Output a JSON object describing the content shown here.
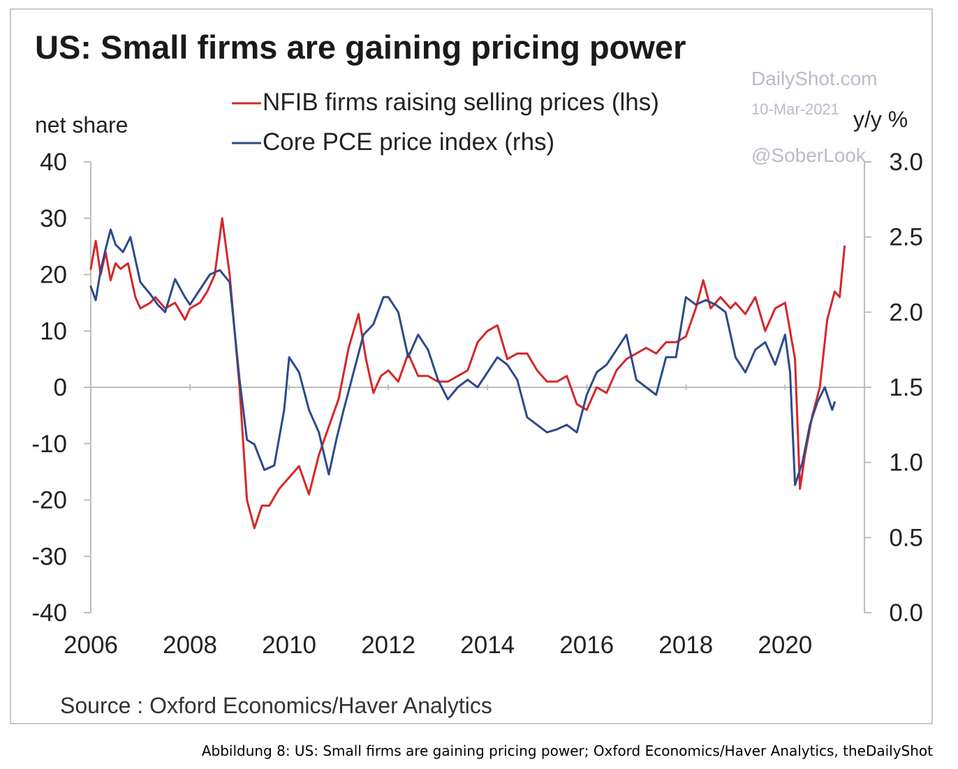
{
  "caption": "Abbildung 8: US: Small firms are gaining pricing power; Oxford Economics/Haver Analytics, theDailyShot",
  "watermark": {
    "site": "DailyShot.com",
    "date": "10-Mar-2021",
    "handle": "@SoberLook"
  },
  "colors": {
    "nfib": "#d62728",
    "pce": "#2e4a8c"
  },
  "chart_data": {
    "type": "line",
    "title": "US: Small firms are gaining pricing power",
    "source": "Source : Oxford Economics/Haver Analytics",
    "ylabel_left": "net share",
    "ylabel_right": "y/y %",
    "ylim_left": [
      -40,
      40
    ],
    "ylim_right": [
      0.0,
      3.0
    ],
    "yticks_left": [
      "40",
      "30",
      "20",
      "10",
      "0",
      "-10",
      "-20",
      "-30",
      "-40"
    ],
    "yticks_right": [
      "3.0",
      "2.5",
      "2.0",
      "1.5",
      "1.0",
      "0.5",
      "0.0"
    ],
    "xlim": [
      2006,
      2021.6
    ],
    "xticks": [
      "2006",
      "2008",
      "2010",
      "2012",
      "2014",
      "2016",
      "2018",
      "2020"
    ],
    "zero_line": true,
    "legend_position": "top-center",
    "series": [
      {
        "name": "NFIB firms raising selling prices (lhs)",
        "axis": "left",
        "x": [
          2006.0,
          2006.1,
          2006.2,
          2006.3,
          2006.4,
          2006.5,
          2006.6,
          2006.75,
          2006.9,
          2007.0,
          2007.2,
          2007.3,
          2007.5,
          2007.7,
          2007.9,
          2008.0,
          2008.2,
          2008.35,
          2008.5,
          2008.65,
          2008.8,
          2009.0,
          2009.15,
          2009.3,
          2009.45,
          2009.6,
          2009.8,
          2010.0,
          2010.2,
          2010.4,
          2010.6,
          2010.8,
          2011.0,
          2011.2,
          2011.4,
          2011.55,
          2011.7,
          2011.85,
          2012.0,
          2012.2,
          2012.4,
          2012.6,
          2012.8,
          2013.0,
          2013.2,
          2013.4,
          2013.6,
          2013.8,
          2014.0,
          2014.2,
          2014.4,
          2014.6,
          2014.8,
          2015.0,
          2015.2,
          2015.4,
          2015.6,
          2015.8,
          2016.0,
          2016.2,
          2016.4,
          2016.6,
          2016.8,
          2017.0,
          2017.2,
          2017.4,
          2017.6,
          2017.8,
          2018.0,
          2018.2,
          2018.35,
          2018.5,
          2018.7,
          2018.9,
          2019.0,
          2019.2,
          2019.4,
          2019.6,
          2019.8,
          2020.0,
          2020.1,
          2020.2,
          2020.3,
          2020.4,
          2020.55,
          2020.7,
          2020.85,
          2021.0,
          2021.1,
          2021.2
        ],
        "values": [
          21,
          26,
          20,
          24,
          19,
          22,
          21,
          22,
          16,
          14,
          15,
          16,
          14,
          15,
          12,
          14,
          15,
          17,
          20,
          30,
          20,
          0,
          -20,
          -25,
          -21,
          -21,
          -18,
          -16,
          -14,
          -19,
          -12,
          -7,
          -2,
          7,
          13,
          5,
          -1,
          2,
          3,
          1,
          6,
          2,
          2,
          1,
          1,
          2,
          3,
          8,
          10,
          11,
          5,
          6,
          6,
          3,
          1,
          1,
          2,
          -3,
          -4,
          0,
          -1,
          3,
          5,
          6,
          7,
          6,
          8,
          8,
          9,
          14,
          19,
          14,
          16,
          14,
          15,
          13,
          16,
          10,
          14,
          15,
          10,
          5,
          -18,
          -12,
          -5,
          0,
          12,
          17,
          16,
          25
        ]
      },
      {
        "name": "Core PCE price index (rhs)",
        "axis": "right",
        "x": [
          2006.0,
          2006.1,
          2006.2,
          2006.3,
          2006.4,
          2006.5,
          2006.65,
          2006.8,
          2007.0,
          2007.2,
          2007.35,
          2007.5,
          2007.7,
          2007.9,
          2008.0,
          2008.2,
          2008.4,
          2008.6,
          2008.8,
          2009.0,
          2009.15,
          2009.3,
          2009.5,
          2009.7,
          2009.9,
          2010.0,
          2010.2,
          2010.4,
          2010.6,
          2010.8,
          2010.95,
          2011.1,
          2011.3,
          2011.5,
          2011.7,
          2011.9,
          2012.0,
          2012.2,
          2012.4,
          2012.6,
          2012.8,
          2013.0,
          2013.2,
          2013.4,
          2013.6,
          2013.8,
          2014.0,
          2014.2,
          2014.4,
          2014.6,
          2014.8,
          2015.0,
          2015.2,
          2015.4,
          2015.6,
          2015.8,
          2016.0,
          2016.2,
          2016.4,
          2016.6,
          2016.8,
          2017.0,
          2017.2,
          2017.4,
          2017.6,
          2017.8,
          2018.0,
          2018.2,
          2018.4,
          2018.6,
          2018.8,
          2019.0,
          2019.2,
          2019.4,
          2019.6,
          2019.8,
          2020.0,
          2020.1,
          2020.2,
          2020.35,
          2020.5,
          2020.65,
          2020.8,
          2020.95,
          2021.0
        ],
        "values": [
          2.17,
          2.08,
          2.28,
          2.42,
          2.55,
          2.45,
          2.4,
          2.5,
          2.2,
          2.12,
          2.05,
          2.0,
          2.22,
          2.1,
          2.05,
          2.15,
          2.25,
          2.28,
          2.2,
          1.55,
          1.15,
          1.12,
          0.95,
          0.98,
          1.35,
          1.7,
          1.6,
          1.35,
          1.2,
          0.92,
          1.15,
          1.35,
          1.6,
          1.85,
          1.92,
          2.1,
          2.1,
          2.0,
          1.7,
          1.85,
          1.75,
          1.55,
          1.42,
          1.5,
          1.55,
          1.5,
          1.6,
          1.7,
          1.65,
          1.55,
          1.3,
          1.25,
          1.2,
          1.22,
          1.25,
          1.2,
          1.45,
          1.6,
          1.65,
          1.75,
          1.85,
          1.55,
          1.5,
          1.45,
          1.7,
          1.7,
          2.1,
          2.05,
          2.08,
          2.05,
          2.0,
          1.7,
          1.6,
          1.75,
          1.8,
          1.65,
          1.85,
          1.6,
          0.85,
          1.0,
          1.25,
          1.4,
          1.5,
          1.35,
          1.4
        ]
      }
    ]
  }
}
